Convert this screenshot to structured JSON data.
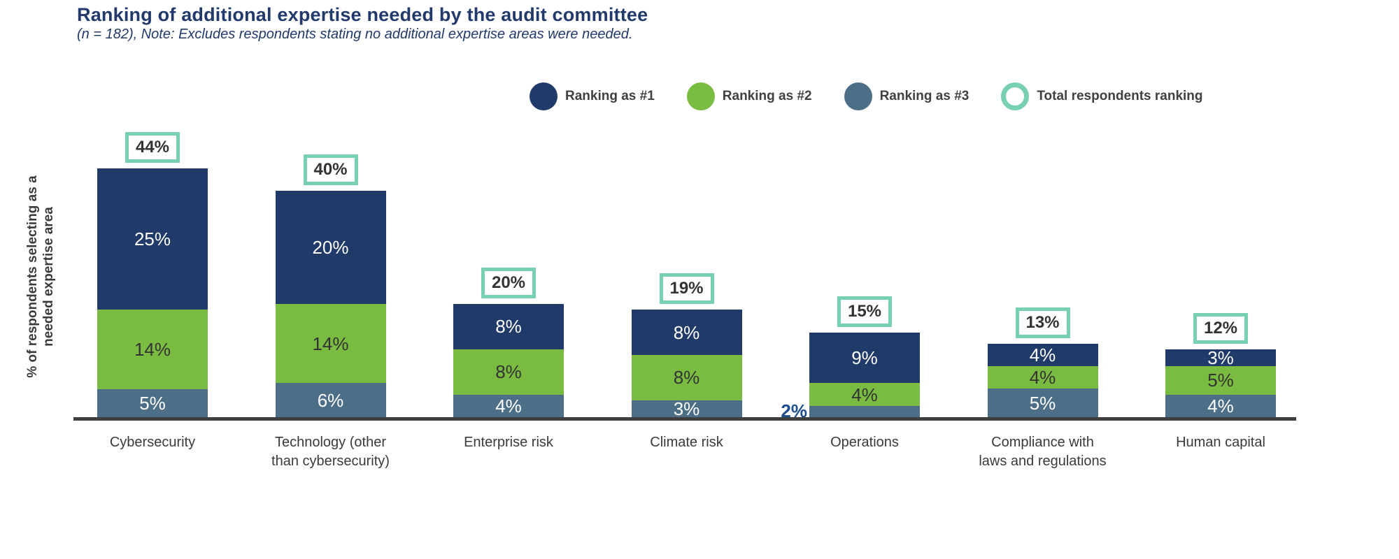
{
  "title": "Ranking of additional expertise needed by the audit committee",
  "subtitle": "(n = 182), Note: Excludes respondents stating no additional expertise areas were needed.",
  "y_axis_label": "% of respondents selecting as a\nneeded expertise area",
  "colors": {
    "rank1_navy": "#203A69",
    "rank2_green": "#7ABB42",
    "rank3_slate": "#4D6E87",
    "total_ring_teal": "#77D1B0",
    "title_navy": "#21396B",
    "axis_gray": "#3F3F3F",
    "dark_text": "#333333",
    "outside_label_blue": "#1F4E8C"
  },
  "legend": {
    "items": [
      {
        "label": "Ranking as #1",
        "color": "#203A69",
        "shape": "filled-circle"
      },
      {
        "label": "Ranking as #2",
        "color": "#7ABB42",
        "shape": "filled-circle"
      },
      {
        "label": "Ranking as #3",
        "color": "#4D6E87",
        "shape": "filled-circle"
      },
      {
        "label": "Total respondents ranking",
        "color": "#77D1B0",
        "shape": "ring-circle"
      }
    ]
  },
  "chart_data": {
    "type": "bar",
    "stacked": true,
    "grid": false,
    "legend_position": "top-right",
    "unit": "%",
    "ylabel": "% of respondents selecting as a\nneeded expertise area",
    "categories": [
      "Cybersecurity",
      "Technology (other\nthan cybersecurity)",
      "Enterprise risk",
      "Climate risk",
      "Operations",
      "Compliance with\nlaws and regulations",
      "Human capital"
    ],
    "series": [
      {
        "name": "Ranking as #1",
        "color": "#203A69",
        "values": [
          25,
          20,
          8,
          8,
          9,
          4,
          3
        ]
      },
      {
        "name": "Ranking as #2",
        "color": "#7ABB42",
        "values": [
          14,
          14,
          8,
          8,
          4,
          4,
          5
        ]
      },
      {
        "name": "Ranking as #3",
        "color": "#4D6E87",
        "values": [
          5,
          6,
          4,
          3,
          2,
          5,
          4
        ]
      }
    ],
    "totals": [
      44,
      40,
      20,
      19,
      15,
      13,
      12
    ],
    "totals_label": "Total respondents ranking",
    "notes": "Operations Ranking-as-#3 value (2%) is labeled outside the bar, left of the segment."
  }
}
